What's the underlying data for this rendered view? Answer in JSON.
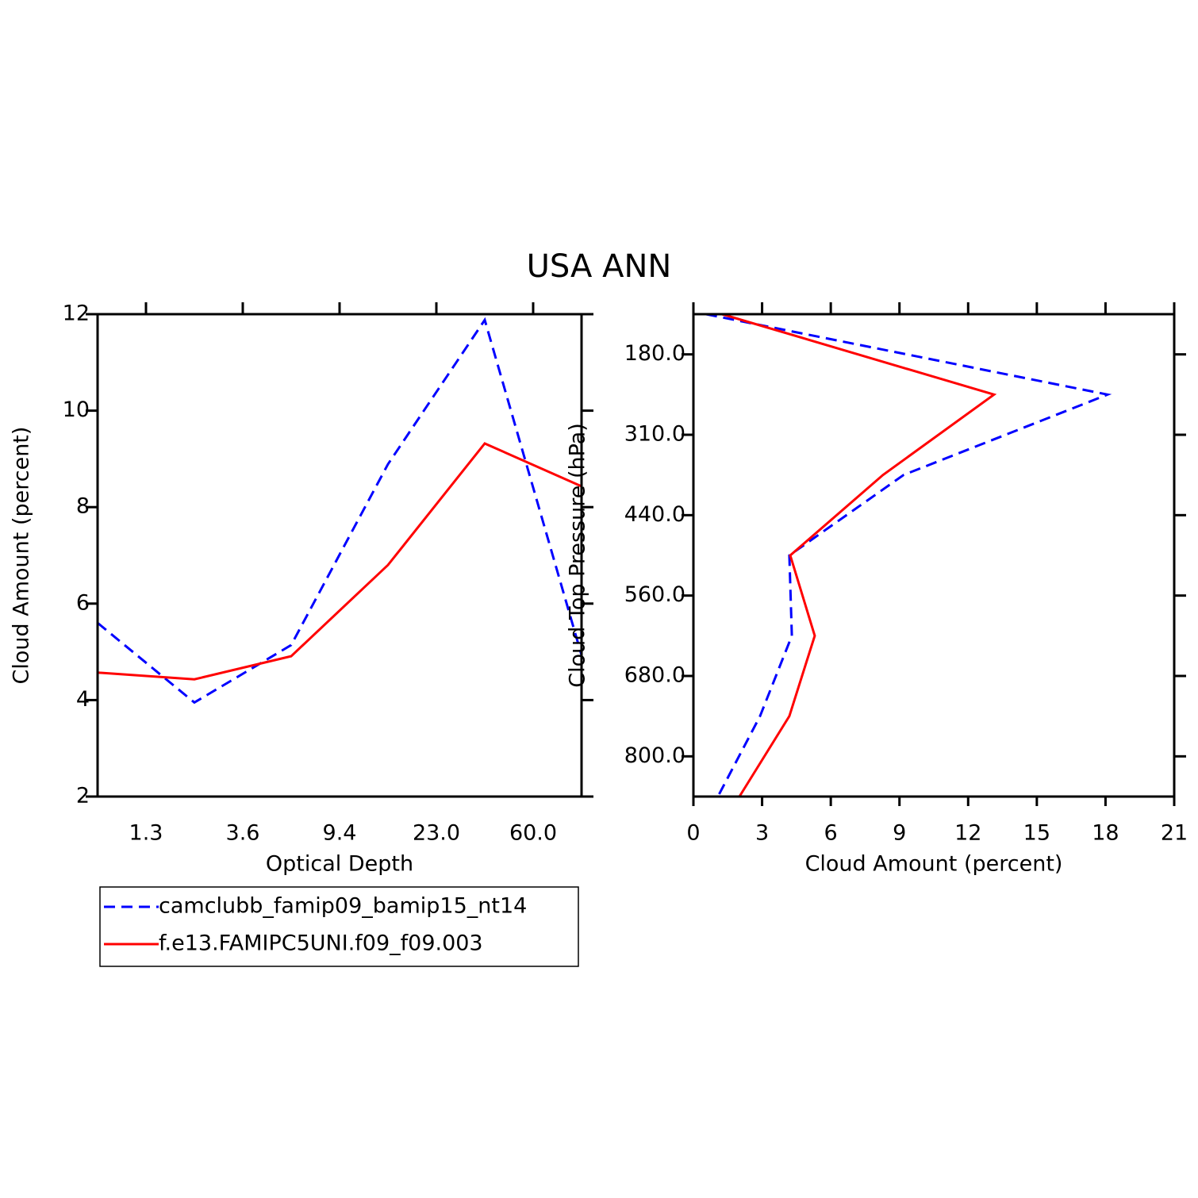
{
  "title": "USA ANN",
  "chart_data": [
    {
      "type": "line",
      "orientation": "vertical",
      "x_label": "Optical Depth",
      "y_label": "Cloud Amount (percent)",
      "x": [
        0,
        1,
        2,
        3,
        4,
        5
      ],
      "xlim": [
        0,
        5
      ],
      "xticks": [
        {
          "value": 0.5,
          "label": "1.3"
        },
        {
          "value": 1.5,
          "label": "3.6"
        },
        {
          "value": 2.5,
          "label": "9.4"
        },
        {
          "value": 3.5,
          "label": "23.0"
        },
        {
          "value": 4.5,
          "label": "60.0"
        }
      ],
      "ylim": [
        2,
        12
      ],
      "yticks": [
        2,
        4,
        6,
        8,
        10,
        12
      ],
      "legend": "bottom",
      "series": [
        {
          "name": "camclubb_famip09_bamip15_nt14",
          "color": "#0000ff",
          "linestyle": "dashed",
          "values": [
            5.6,
            3.95,
            5.14,
            8.89,
            11.88,
            4.93
          ]
        },
        {
          "name": "f.e13.FAMIPC5UNI.f09_f09.003",
          "color": "#ff0000",
          "linestyle": "solid",
          "values": [
            4.57,
            4.43,
            4.91,
            6.8,
            9.32,
            8.43
          ]
        }
      ]
    },
    {
      "type": "line",
      "orientation": "horizontal",
      "x_label": "Cloud Amount (percent)",
      "y_label": "Cloud Top Pressure (hPa)",
      "y": [
        0,
        1,
        2,
        3,
        4,
        5,
        6
      ],
      "ylim": [
        6,
        0
      ],
      "yticks": [
        {
          "value": 0.5,
          "label": "180.0"
        },
        {
          "value": 1.5,
          "label": "310.0"
        },
        {
          "value": 2.5,
          "label": "440.0"
        },
        {
          "value": 3.5,
          "label": "560.0"
        },
        {
          "value": 4.5,
          "label": "680.0"
        },
        {
          "value": 5.5,
          "label": "800.0"
        }
      ],
      "xlim": [
        0,
        21
      ],
      "xticks": [
        0,
        3,
        6,
        9,
        12,
        15,
        18,
        21
      ],
      "series": [
        {
          "color": "#0000ff",
          "linestyle": "dashed",
          "values": [
            0.55,
            18.09,
            9.18,
            4.19,
            4.3,
            2.91,
            1.07
          ]
        },
        {
          "color": "#ff0000",
          "linestyle": "solid",
          "values": [
            1.25,
            13.13,
            8.28,
            4.23,
            5.3,
            4.19,
            2.01
          ]
        }
      ]
    }
  ]
}
